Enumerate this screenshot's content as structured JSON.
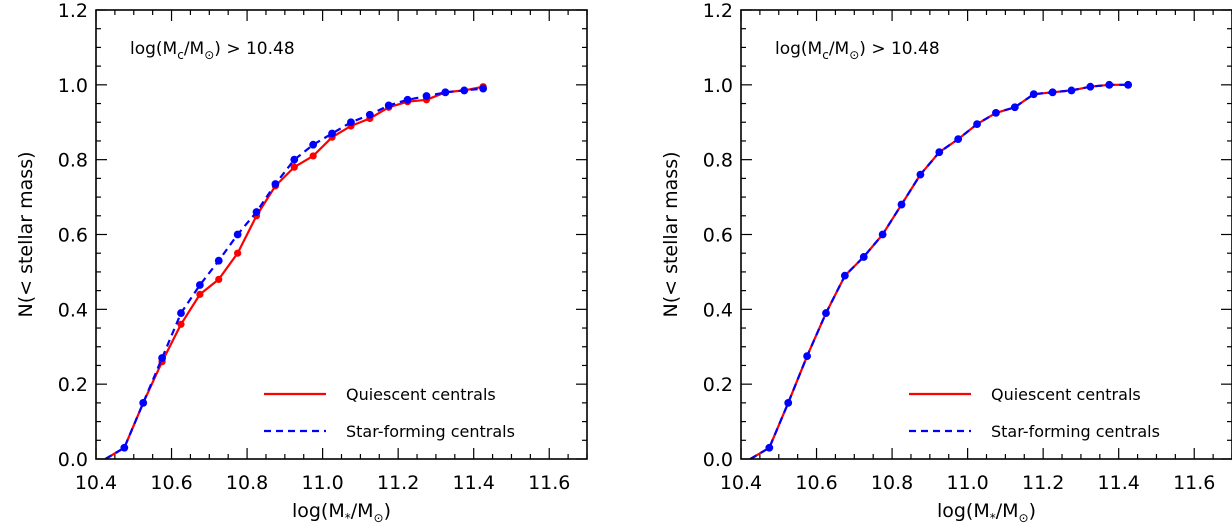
{
  "chart_data": [
    {
      "type": "line",
      "xlim": [
        10.4,
        11.7
      ],
      "ylim": [
        0.0,
        1.2
      ],
      "xticks": [
        10.4,
        10.6,
        10.8,
        11.0,
        11.2,
        11.4,
        11.6
      ],
      "xtick_labels": [
        "10.4",
        "10.6",
        "10.8",
        "11.0",
        "11.2",
        "11.4",
        "11.6"
      ],
      "yticks": [
        0.0,
        0.2,
        0.4,
        0.6,
        0.8,
        1.0,
        1.2
      ],
      "ytick_labels": [
        "0.0",
        "0.2",
        "0.4",
        "0.6",
        "0.8",
        "1.0",
        "1.2"
      ],
      "xlabel": {
        "prefix": "log(M",
        "sub1": "*",
        "mid": "/M",
        "sub2": "⊙",
        "suffix": ")"
      },
      "ylabel": "N(< stellar mass)",
      "annotation": {
        "prefix": "log(M",
        "sub1": "c",
        "mid": "/M",
        "sub2": "⊙",
        "suffix": ") > 10.48"
      },
      "legend_position": "bottom-right",
      "x": [
        10.425,
        10.475,
        10.525,
        10.575,
        10.625,
        10.675,
        10.725,
        10.775,
        10.825,
        10.875,
        10.925,
        10.975,
        11.025,
        11.075,
        11.125,
        11.175,
        11.225,
        11.275,
        11.325,
        11.375,
        11.425
      ],
      "series": [
        {
          "name": "Quiescent centrals",
          "color": "#ff0000",
          "style": "solid",
          "values": [
            0.0,
            0.03,
            0.15,
            0.26,
            0.36,
            0.44,
            0.48,
            0.55,
            0.65,
            0.73,
            0.78,
            0.81,
            0.86,
            0.89,
            0.91,
            0.94,
            0.955,
            0.96,
            0.98,
            0.985,
            0.995
          ]
        },
        {
          "name": "Star-forming centrals",
          "color": "#0000ff",
          "style": "dashed",
          "values": [
            0.0,
            0.03,
            0.15,
            0.27,
            0.39,
            0.465,
            0.53,
            0.6,
            0.66,
            0.735,
            0.8,
            0.84,
            0.87,
            0.9,
            0.92,
            0.945,
            0.96,
            0.97,
            0.98,
            0.985,
            0.99
          ]
        }
      ]
    },
    {
      "type": "line",
      "xlim": [
        10.4,
        11.7
      ],
      "ylim": [
        0.0,
        1.2
      ],
      "xticks": [
        10.4,
        10.6,
        10.8,
        11.0,
        11.2,
        11.4,
        11.6
      ],
      "xtick_labels": [
        "10.4",
        "10.6",
        "10.8",
        "11.0",
        "11.2",
        "11.4",
        "11.6"
      ],
      "yticks": [
        0.0,
        0.2,
        0.4,
        0.6,
        0.8,
        1.0,
        1.2
      ],
      "ytick_labels": [
        "0.0",
        "0.2",
        "0.4",
        "0.6",
        "0.8",
        "1.0",
        "1.2"
      ],
      "xlabel": {
        "prefix": "log(M",
        "sub1": "*",
        "mid": "/M",
        "sub2": "⊙",
        "suffix": ")"
      },
      "ylabel": "N(< stellar mass)",
      "annotation": {
        "prefix": "log(M",
        "sub1": "c",
        "mid": "/M",
        "sub2": "⊙",
        "suffix": ") > 10.48"
      },
      "legend_position": "bottom-right",
      "x": [
        10.425,
        10.475,
        10.525,
        10.575,
        10.625,
        10.675,
        10.725,
        10.775,
        10.825,
        10.875,
        10.925,
        10.975,
        11.025,
        11.075,
        11.125,
        11.175,
        11.225,
        11.275,
        11.325,
        11.375,
        11.425
      ],
      "series": [
        {
          "name": "Quiescent centrals",
          "color": "#ff0000",
          "style": "solid",
          "values": [
            0.0,
            0.03,
            0.15,
            0.275,
            0.39,
            0.49,
            0.54,
            0.6,
            0.68,
            0.76,
            0.82,
            0.855,
            0.895,
            0.925,
            0.94,
            0.975,
            0.98,
            0.985,
            0.995,
            1.0,
            1.0
          ]
        },
        {
          "name": "Star-forming centrals",
          "color": "#0000ff",
          "style": "dashed",
          "values": [
            0.0,
            0.03,
            0.15,
            0.275,
            0.39,
            0.49,
            0.54,
            0.6,
            0.68,
            0.76,
            0.82,
            0.855,
            0.895,
            0.925,
            0.94,
            0.975,
            0.98,
            0.985,
            0.995,
            1.0,
            1.0
          ]
        }
      ]
    }
  ]
}
